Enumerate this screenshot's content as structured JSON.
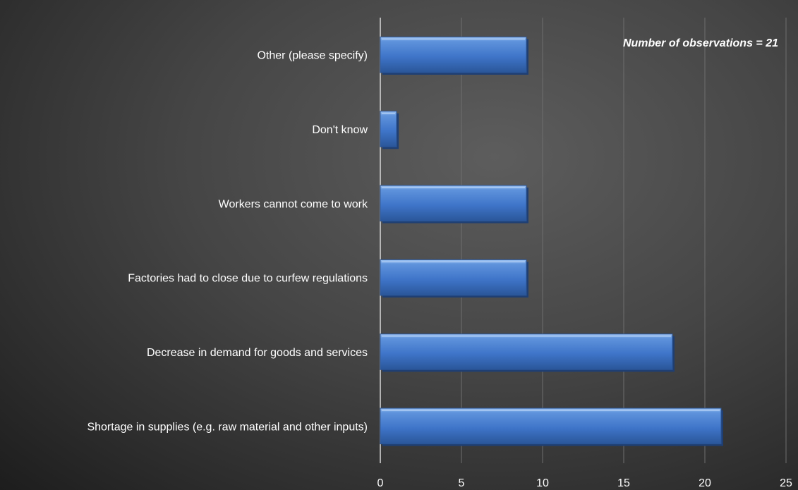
{
  "chart_data": {
    "type": "bar",
    "orientation": "horizontal",
    "categories": [
      "Other (please specify)",
      "Don't know",
      "Workers cannot come to work",
      "Factories had to close due to curfew regulations",
      "Decrease in demand for goods and services",
      "Shortage in supplies (e.g. raw material and other inputs)"
    ],
    "values": [
      9,
      1,
      9,
      9,
      18,
      21
    ],
    "xlim": [
      0,
      25
    ],
    "xticks": [
      0,
      5,
      10,
      15,
      20,
      25
    ],
    "title": "",
    "xlabel": "",
    "ylabel": "",
    "annotation": "Number of observations = 21",
    "grid": "vertical",
    "legend": "none",
    "bar_color": "#4a7fd0"
  }
}
